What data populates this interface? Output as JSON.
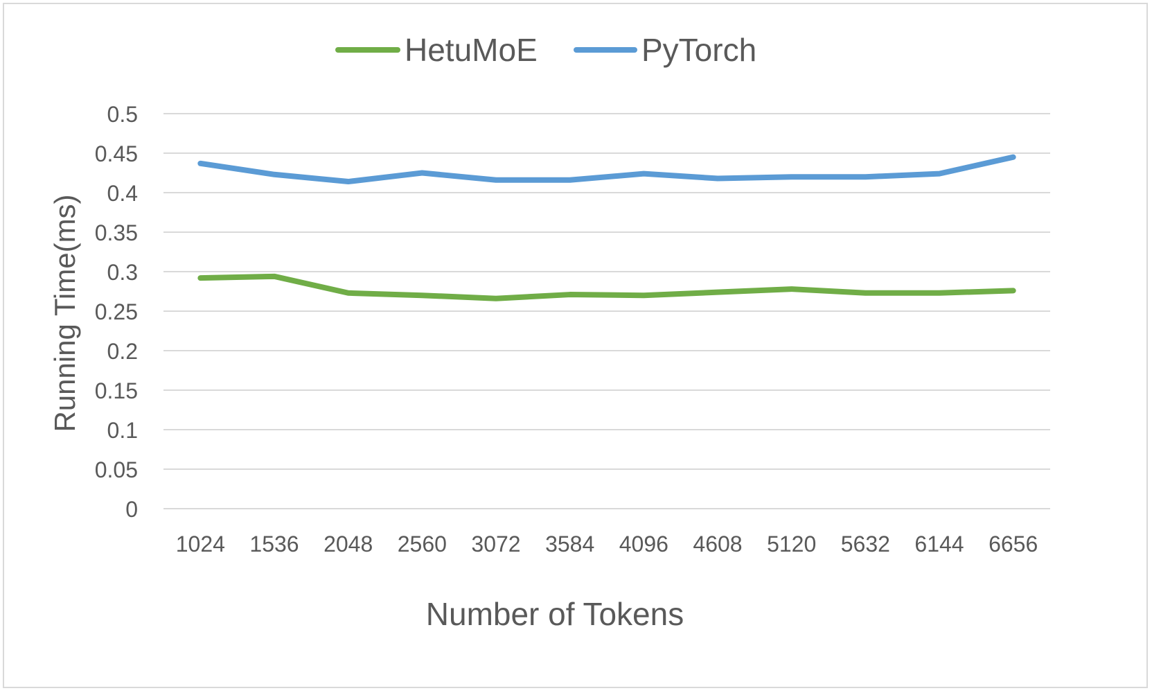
{
  "chart_data": {
    "type": "line",
    "title": "",
    "xlabel": "Number of Tokens",
    "ylabel": "Running Time(ms)",
    "categories": [
      "1024",
      "1536",
      "2048",
      "2560",
      "3072",
      "3584",
      "4096",
      "4608",
      "5120",
      "5632",
      "6144",
      "6656"
    ],
    "ylim": [
      0,
      0.5
    ],
    "yticks": [
      "0",
      "0.05",
      "0.1",
      "0.15",
      "0.2",
      "0.25",
      "0.3",
      "0.35",
      "0.4",
      "0.45",
      "0.5"
    ],
    "grid": true,
    "legend_position": "top-center",
    "series": [
      {
        "name": "HetuMoE",
        "color": "#70ad47",
        "values": [
          0.292,
          0.294,
          0.273,
          0.27,
          0.266,
          0.271,
          0.27,
          0.274,
          0.278,
          0.273,
          0.273,
          0.276
        ]
      },
      {
        "name": "PyTorch",
        "color": "#5b9bd5",
        "values": [
          0.437,
          0.423,
          0.414,
          0.425,
          0.416,
          0.416,
          0.424,
          0.418,
          0.42,
          0.42,
          0.424,
          0.445
        ]
      }
    ],
    "gridline_color": "#d9d9d9"
  }
}
